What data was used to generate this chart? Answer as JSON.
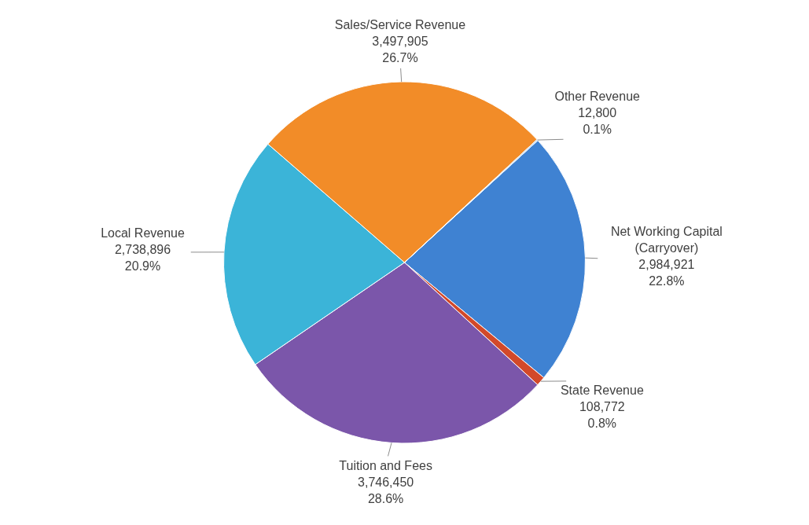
{
  "chart_data": {
    "type": "pie",
    "categories": [
      "Net Working Capital (Carryover)",
      "State Revenue",
      "Tuition and Fees",
      "Local Revenue",
      "Sales/Service Revenue",
      "Other Revenue"
    ],
    "values": [
      2984921,
      108772,
      3746450,
      2738896,
      3497905,
      12800
    ],
    "value_labels": [
      "2,984,921\n22.8%",
      "108,772\n0.8%",
      "3,746,450\n28.6%",
      "2,738,896\n20.9%",
      "3,497,905\n26.7%",
      "12,800\n0.1%"
    ],
    "colors": [
      "#3f82d2",
      "#d2492a",
      "#7b56aa",
      "#3bb4d8",
      "#f28c28",
      "#9cc3ea"
    ]
  }
}
